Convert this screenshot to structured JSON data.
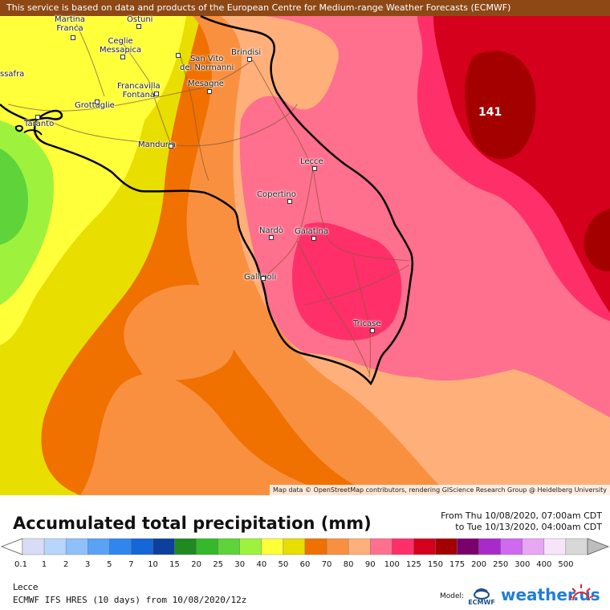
{
  "attribution_top": "This service is based on data and products of the European Centre for Medium-range Weather Forecasts (ECMWF)",
  "attribution_bottom": "Map data © OpenStreetMap contributors, rendering GIScience Research Group @ Heidelberg University",
  "max_value": "141",
  "cities": [
    {
      "name": "Martina\nFranca",
      "key": "martina-franca"
    },
    {
      "name": "Ostuni",
      "key": "ostuni"
    },
    {
      "name": "Ceglie\nMessapica",
      "key": "ceglie-messapica"
    },
    {
      "name": "Brindisi",
      "key": "brindisi"
    },
    {
      "name": "San Vito\ndei Normanni",
      "key": "san-vito"
    },
    {
      "name": "Mesagne",
      "key": "mesagne"
    },
    {
      "name": "Francavilla\nFontana",
      "key": "francavilla"
    },
    {
      "name": "Grottaglie",
      "key": "grottaglie"
    },
    {
      "name": "Taranto",
      "key": "taranto"
    },
    {
      "name": "ssafra",
      "key": "massafra"
    },
    {
      "name": "Manduria",
      "key": "manduria"
    },
    {
      "name": "Lecce",
      "key": "lecce"
    },
    {
      "name": "Copertino",
      "key": "copertino"
    },
    {
      "name": "Nardò",
      "key": "nardo"
    },
    {
      "name": "Galatina",
      "key": "galatina"
    },
    {
      "name": "Gallipoli",
      "key": "gallipoli"
    },
    {
      "name": "Tricase",
      "key": "tricase"
    }
  ],
  "legend": {
    "title": "Accumulated total precipitation (mm)",
    "from": "From Thu 10/08/2020, 07:00am CDT",
    "to": "to Tue 10/13/2020, 04:00am CDT",
    "ticks": [
      "0.1",
      "1",
      "2",
      "3",
      "5",
      "7",
      "10",
      "15",
      "20",
      "25",
      "30",
      "40",
      "50",
      "60",
      "70",
      "80",
      "90",
      "100",
      "125",
      "150",
      "175",
      "200",
      "250",
      "300",
      "400",
      "500"
    ],
    "colors": [
      "#d9dcf6",
      "#b8d6fc",
      "#8ec0fb",
      "#5aa2f4",
      "#2f86ee",
      "#1566d6",
      "#0d3f9c",
      "#1f8a20",
      "#35b82a",
      "#5fd33a",
      "#9ef23d",
      "#ffff3a",
      "#e8de00",
      "#f07000",
      "#f99040",
      "#ffb07a",
      "#ff6f8e",
      "#ff2f6a",
      "#d4001c",
      "#a40000",
      "#7a006e",
      "#a82bc9",
      "#cf69f0",
      "#e8a6f5",
      "#f7e4fb",
      "#d8d8d8"
    ]
  },
  "location": "Lecce",
  "model": "ECMWF IFS HRES (10 days) from 10/08/2020/12z",
  "model_label": "Model:",
  "ecmwf_logo": "ECMWF",
  "brand": "weather.us",
  "colors": {
    "p50": "#e8de00",
    "p60": "#f07000",
    "p70": "#f99040",
    "p80": "#ffb07a",
    "p90": "#ff6f8e",
    "p100": "#ff2f6a",
    "p125": "#d4001c",
    "p150": "#a40000",
    "p40": "#ffff3a",
    "p30": "#9ef23d",
    "p25": "#5fd33a"
  }
}
